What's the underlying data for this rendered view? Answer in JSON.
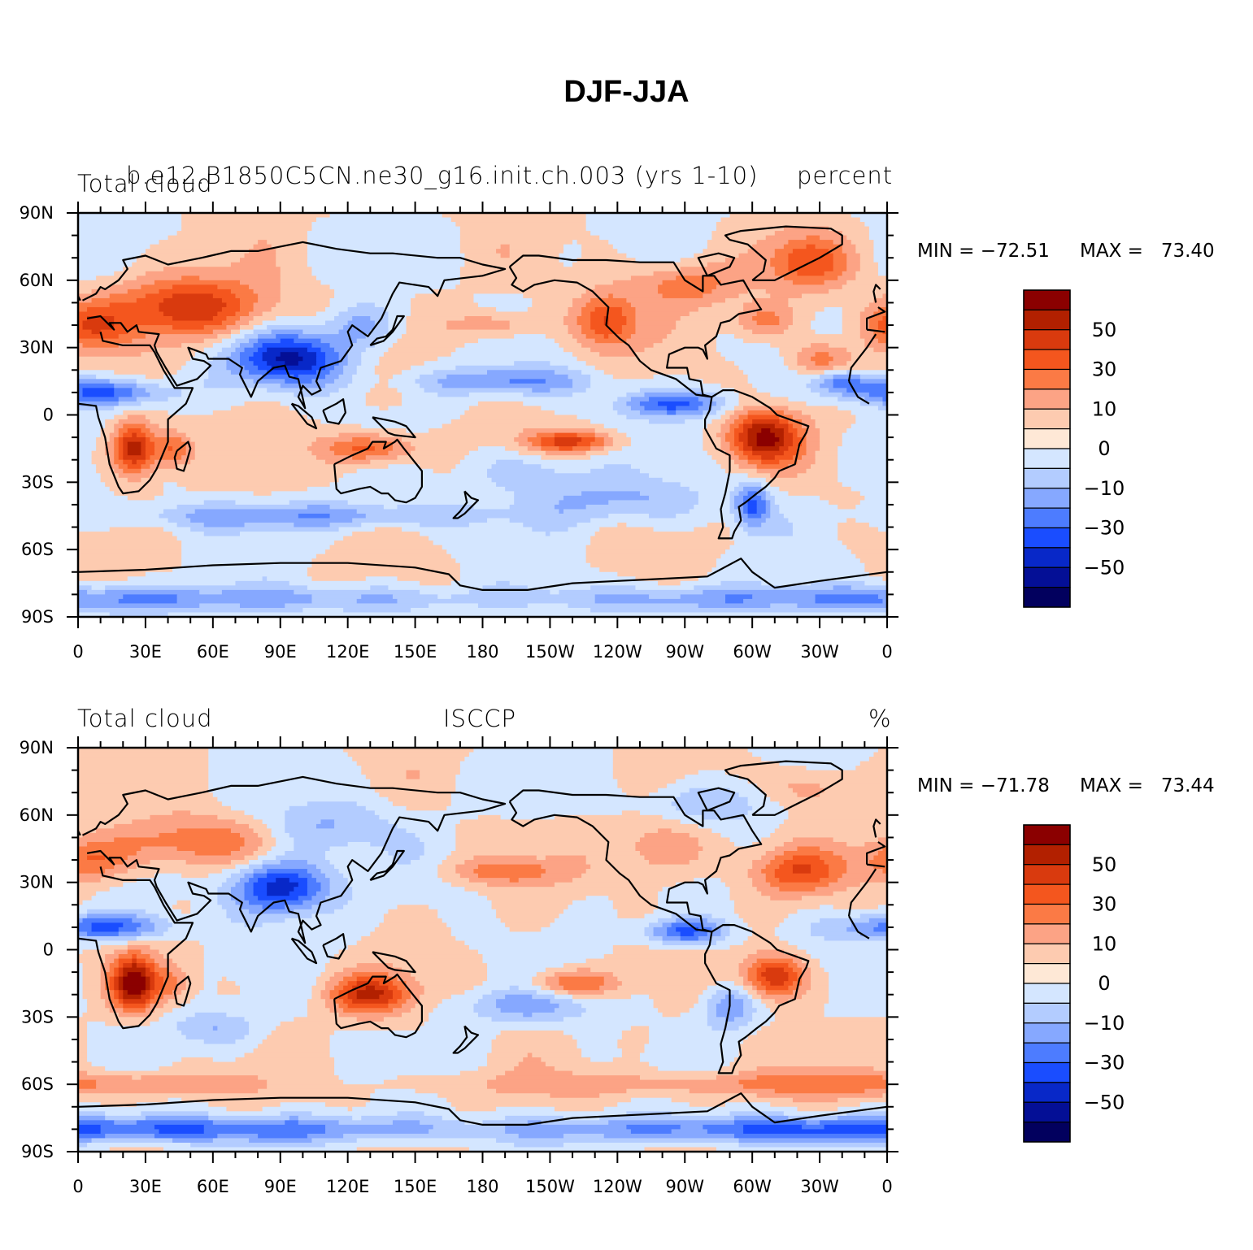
{
  "title": "DJF-JJA",
  "palette": [
    "#8b0000",
    "#b22000",
    "#d93a0e",
    "#f4561e",
    "#fb7a45",
    "#fca385",
    "#fdcbb0",
    "#fee8d6",
    "#d4e6ff",
    "#b3ccff",
    "#86a8ff",
    "#4d7cff",
    "#1a4dff",
    "#0828c8",
    "#040f96",
    "#02005e"
  ],
  "panels": [
    {
      "id": "model",
      "left_label": "Total cloud",
      "center_label": "b.e12.B1850C5CN.ne30_g16.init.ch.003 (yrs 1-10)",
      "right_label": "percent",
      "min_text": "MIN = −72.51",
      "max_text": "MAX =   73.40",
      "seed": 7
    },
    {
      "id": "obs",
      "left_label": "Total cloud",
      "center_label": "ISCCP",
      "right_label": "%",
      "min_text": "MIN = −71.78",
      "max_text": "MAX =   73.44",
      "seed": 19
    }
  ],
  "colorbar": {
    "labels": [
      "50",
      "30",
      "10",
      "0",
      "−10",
      "−30",
      "−50"
    ]
  },
  "lat_labels": [
    "90N",
    "60N",
    "30N",
    "0",
    "30S",
    "60S",
    "90S"
  ],
  "lon_labels": [
    "0",
    "30E",
    "60E",
    "90E",
    "120E",
    "150E",
    "180",
    "150W",
    "120W",
    "90W",
    "60W",
    "30W",
    "0"
  ]
}
